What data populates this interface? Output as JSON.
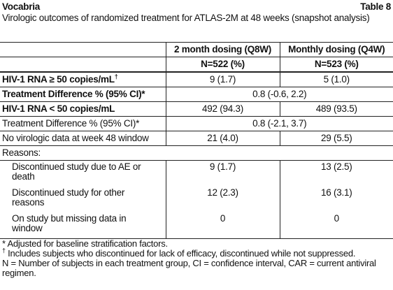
{
  "header": {
    "title": "Vocabria",
    "table_label": "Table 8",
    "caption": "Virologic outcomes of randomized treatment for ATLAS-2M at 48 weeks (snapshot analysis)"
  },
  "table": {
    "columns": [
      {
        "name": "2 month dosing (Q8W)",
        "n": "N=522 (%)"
      },
      {
        "name": "Monthly dosing (Q4W)",
        "n": "N=523 (%)"
      }
    ],
    "rows": [
      {
        "label": "HIV-1 RNA ≥ 50 copies/mL",
        "marker": "†",
        "values": [
          "9 (1.7)",
          "5 (1.0)"
        ]
      },
      {
        "label": "Treatment Difference % (95% CI)*",
        "value": "0.8 (-0.6, 2.2)"
      },
      {
        "label": "HIV-1 RNA < 50 copies/mL",
        "values": [
          "492 (94.3)",
          "489 (93.5)"
        ]
      },
      {
        "label": "Treatment Difference % (95% CI)*",
        "value": "0.8 (-2.1, 3.7)"
      },
      {
        "label": "No virologic data at week 48 window",
        "values": [
          "21 (4.0)",
          "29 (5.5)"
        ]
      },
      {
        "label": "Reasons:"
      },
      {
        "label": "Discontinued study due to AE or death",
        "values": [
          "9 (1.7)",
          "13 (2.5)"
        ]
      },
      {
        "label": "Discontinued study for other reasons",
        "values": [
          "12 (2.3)",
          "16 (3.1)"
        ]
      },
      {
        "label": "On study but missing data in window",
        "values": [
          "0",
          "0"
        ]
      }
    ]
  },
  "footnotes": [
    {
      "marker": "*",
      "text": "Adjusted for baseline stratification factors."
    },
    {
      "marker": "†",
      "text": "Includes subjects who discontinued for lack of efficacy, discontinued while not suppressed."
    },
    {
      "text": "N = Number of subjects in each treatment group, CI = confidence interval, CAR = current antiviral regimen."
    }
  ]
}
